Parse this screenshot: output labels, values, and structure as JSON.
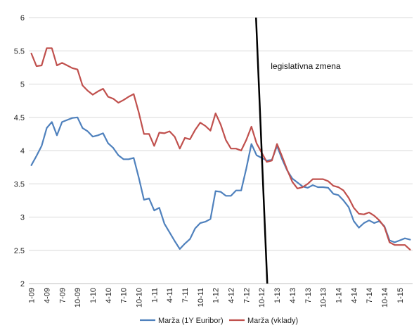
{
  "chart_data": {
    "type": "line",
    "title": "",
    "xlabel": "",
    "ylabel": "",
    "ylim": [
      2,
      6
    ],
    "yticks": [
      "2",
      "2.5",
      "3",
      "3.5",
      "4",
      "4.5",
      "5",
      "5.5",
      "6"
    ],
    "grid": "horizontal",
    "legend_position": "bottom",
    "x_labels": [
      "1-09",
      "4-09",
      "7-09",
      "10-09",
      "1-10",
      "4-10",
      "7-10",
      "10-10",
      "1-11",
      "4-11",
      "7-11",
      "10-11",
      "1-12",
      "4-12",
      "7-12",
      "10-12",
      "1-13",
      "4-13",
      "7-13",
      "10-13",
      "1-14",
      "4-14",
      "7-14",
      "10-14",
      "1-15"
    ],
    "label_every": 3,
    "colors": {
      "series_0": "#4f81bd",
      "series_1": "#c0504d",
      "annotation_line": "#000000",
      "grid": "#d9d9d9"
    },
    "annotation": {
      "text": "legislatívna zmena",
      "x_index": 45
    },
    "series": [
      {
        "name": "Marža (1Y Euribor)",
        "values": [
          3.78,
          3.92,
          4.07,
          4.34,
          4.43,
          4.23,
          4.43,
          4.46,
          4.49,
          4.5,
          4.34,
          4.29,
          4.21,
          4.23,
          4.26,
          4.11,
          4.04,
          3.93,
          3.87,
          3.87,
          3.89,
          3.59,
          3.26,
          3.28,
          3.1,
          3.14,
          2.9,
          2.77,
          2.64,
          2.52,
          2.6,
          2.67,
          2.83,
          2.91,
          2.93,
          2.97,
          3.39,
          3.38,
          3.32,
          3.32,
          3.4,
          3.4,
          3.73,
          4.1,
          3.93,
          3.89,
          3.85,
          3.86,
          4.07,
          3.87,
          3.7,
          3.58,
          3.52,
          3.46,
          3.44,
          3.48,
          3.45,
          3.45,
          3.44,
          3.35,
          3.33,
          3.25,
          3.15,
          2.94,
          2.84,
          2.91,
          2.95,
          2.91,
          2.94,
          2.86,
          2.65,
          2.62,
          2.65,
          2.68,
          2.66
        ]
      },
      {
        "name": "Marža (vklady)",
        "values": [
          5.46,
          5.27,
          5.28,
          5.54,
          5.54,
          5.28,
          5.32,
          5.28,
          5.24,
          5.22,
          4.98,
          4.9,
          4.84,
          4.89,
          4.93,
          4.81,
          4.78,
          4.72,
          4.76,
          4.81,
          4.85,
          4.57,
          4.25,
          4.25,
          4.07,
          4.27,
          4.26,
          4.29,
          4.21,
          4.03,
          4.19,
          4.17,
          4.31,
          4.42,
          4.37,
          4.3,
          4.56,
          4.39,
          4.16,
          4.03,
          4.03,
          4.0,
          4.16,
          4.36,
          4.11,
          3.97,
          3.83,
          3.85,
          4.1,
          3.91,
          3.71,
          3.53,
          3.43,
          3.45,
          3.5,
          3.57,
          3.57,
          3.57,
          3.54,
          3.47,
          3.45,
          3.4,
          3.29,
          3.14,
          3.05,
          3.04,
          3.07,
          3.02,
          2.95,
          2.85,
          2.62,
          2.58,
          2.58,
          2.58,
          2.51
        ]
      }
    ]
  }
}
